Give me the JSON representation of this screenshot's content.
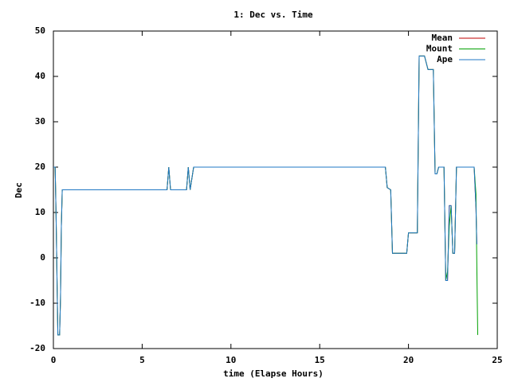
{
  "chart_data": {
    "type": "line",
    "title": "1: Dec vs. Time",
    "x_label": "time (Elapse Hours)",
    "y_label": "Dec",
    "x": [
      0,
      0.1,
      0.15,
      0.25,
      0.35,
      0.4,
      0.45,
      0.5,
      6.4,
      6.5,
      6.6,
      7.5,
      7.6,
      7.7,
      7.9,
      12,
      18.7,
      18.8,
      19.0,
      19.1,
      19.9,
      20.0,
      20.5,
      20.6,
      20.9,
      21.1,
      21.4,
      21.5,
      21.6,
      21.7,
      22.0,
      22.1,
      22.2,
      22.3,
      22.4,
      22.5,
      22.6,
      22.7,
      23.7,
      23.8,
      23.85,
      23.9
    ],
    "series": [
      {
        "name": "Mean",
        "color": "#c00000",
        "values": [
          20,
          20,
          10,
          -17,
          -17,
          -9,
          7,
          15,
          15,
          20,
          15,
          15,
          20,
          15,
          20,
          20,
          20,
          15.5,
          15,
          1,
          1,
          5.5,
          5.5,
          44.5,
          44.5,
          41.5,
          41.5,
          18.5,
          18.5,
          20,
          20,
          -5,
          -5,
          11.5,
          11.5,
          1,
          1,
          20,
          20,
          11,
          3,
          null
        ]
      },
      {
        "name": "Mount",
        "color": "#00a000",
        "values": [
          20,
          20,
          10,
          -17,
          -17,
          -9,
          7,
          15,
          15,
          20,
          15,
          15,
          20,
          15,
          20,
          20,
          20,
          15.5,
          15,
          1,
          1,
          5.5,
          5.5,
          44.5,
          44.5,
          41.5,
          41.5,
          18.5,
          18.5,
          20,
          20,
          -5,
          -3,
          7,
          11.5,
          1,
          1,
          20,
          20,
          14,
          -2,
          -17
        ]
      },
      {
        "name": "Ape",
        "color": "#1f77c4",
        "values": [
          20,
          20,
          10,
          -17,
          -17,
          -9,
          7,
          15,
          15,
          20,
          15,
          15,
          20,
          15,
          20,
          20,
          20,
          15.5,
          15,
          1,
          1,
          5.5,
          5.5,
          44.5,
          44.5,
          41.5,
          41.5,
          18.5,
          18.5,
          20,
          20,
          -5,
          -5,
          11.5,
          11.5,
          1,
          1,
          20,
          20,
          11,
          3,
          null
        ]
      }
    ],
    "xlim": [
      0,
      25
    ],
    "xticks": [
      0,
      5,
      10,
      15,
      20,
      25
    ],
    "ylim": [
      -20,
      50
    ],
    "yticks": [
      -20,
      -10,
      0,
      10,
      20,
      30,
      40,
      50
    ],
    "grid": false,
    "legend": "top-right"
  }
}
